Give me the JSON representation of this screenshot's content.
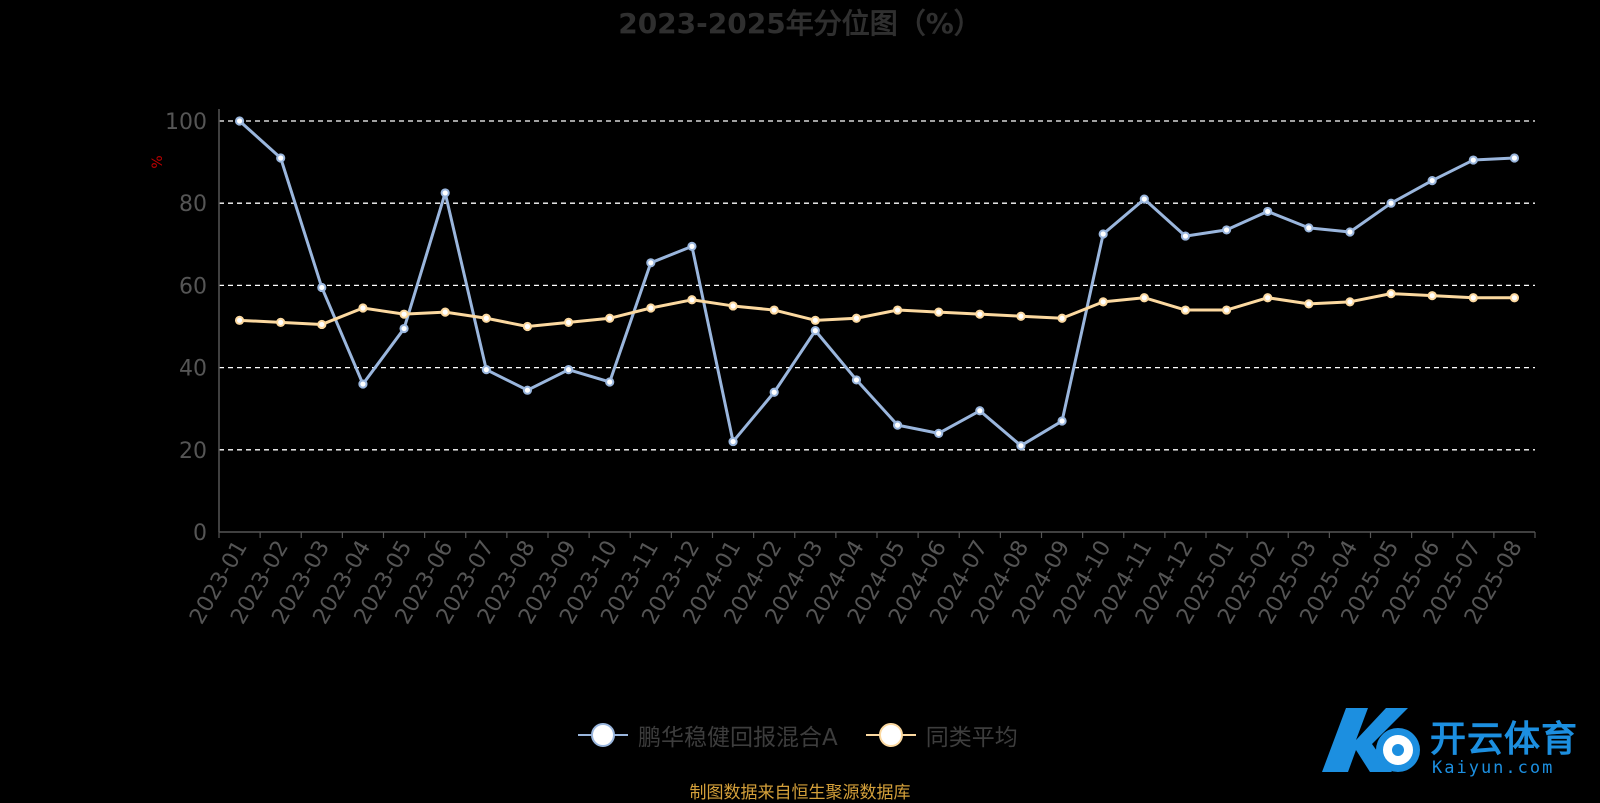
{
  "title": "2023-2025年分位图（%）",
  "source_note": "制图数据来自恒生聚源数据库",
  "watermark": {
    "text": "开云体育",
    "subtext": "Kaiyun.com"
  },
  "colors": {
    "fund": "#9ab6dd",
    "avg": "#fcd9a0",
    "grid": "#ffffff",
    "axis": "#555555",
    "unit": "#c00000"
  },
  "chart_data": {
    "type": "line",
    "title": "2023-2025年分位图（%）",
    "ylabel": "%",
    "ylim": [
      0,
      100
    ],
    "yticks": [
      0,
      20,
      40,
      60,
      80,
      100
    ],
    "grid": true,
    "legend_position": "bottom",
    "categories": [
      "2023-01",
      "2023-02",
      "2023-03",
      "2023-04",
      "2023-05",
      "2023-06",
      "2023-07",
      "2023-08",
      "2023-09",
      "2023-10",
      "2023-11",
      "2023-12",
      "2024-01",
      "2024-02",
      "2024-03",
      "2024-04",
      "2024-05",
      "2024-06",
      "2024-07",
      "2024-08",
      "2024-09",
      "2024-10",
      "2024-11",
      "2024-12",
      "2025-01",
      "2025-02",
      "2025-03",
      "2025-04",
      "2025-05",
      "2025-06",
      "2025-07",
      "2025-08"
    ],
    "series": [
      {
        "name": "鹏华稳健回报混合A",
        "color": "#9ab6dd",
        "values": [
          100.0,
          91.0,
          59.5,
          36.0,
          49.5,
          82.5,
          39.5,
          34.5,
          39.5,
          36.5,
          65.5,
          69.5,
          22.0,
          34.0,
          49.0,
          37.0,
          26.0,
          24.0,
          29.5,
          21.0,
          27.0,
          72.5,
          81.0,
          72.0,
          73.5,
          78.0,
          74.0,
          73.0,
          80.0,
          85.5,
          90.5,
          91.0
        ]
      },
      {
        "name": "同类平均",
        "color": "#fcd9a0",
        "values": [
          51.5,
          51.0,
          50.5,
          54.5,
          53.0,
          53.5,
          52.0,
          50.0,
          51.0,
          52.0,
          54.5,
          56.5,
          55.0,
          54.0,
          51.5,
          52.0,
          54.0,
          53.5,
          53.0,
          52.5,
          52.0,
          56.0,
          57.0,
          54.0,
          54.0,
          57.0,
          55.5,
          56.0,
          58.0,
          57.5,
          57.0,
          57.0
        ]
      }
    ]
  }
}
